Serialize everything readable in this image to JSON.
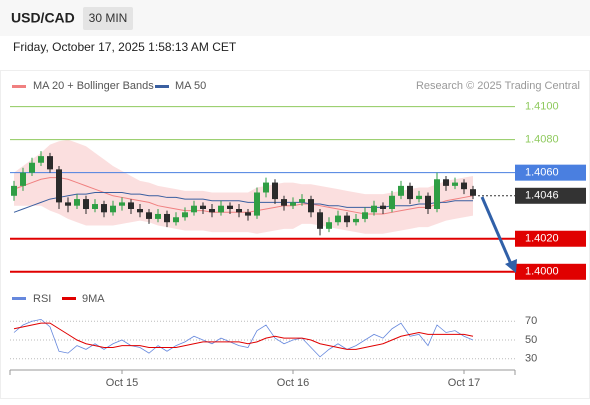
{
  "header": {
    "symbol": "USD/CAD",
    "interval": "30 MIN",
    "datetime": "Friday, October 17, 2025 1:58:13 AM CET"
  },
  "chart_data": {
    "type": "candlestick",
    "legend": [
      {
        "name": "MA 20 + Bollinger Bands",
        "color": "#f08080"
      },
      {
        "name": "MA 50",
        "color": "#3a5fa0"
      }
    ],
    "credit": "Research © 2025 Trading Central",
    "ylim": [
      1.3992,
      1.4107
    ],
    "xticks": [
      {
        "value": 12,
        "label": "Oct 15"
      },
      {
        "value": 31,
        "label": "Oct 16"
      },
      {
        "value": 50,
        "label": "Oct 17"
      }
    ],
    "up_color": "#2f9e44",
    "down_color": "#2b2b2b",
    "open": [
      1.4046,
      1.4052,
      1.406,
      1.4066,
      1.407,
      1.4062,
      1.4042,
      1.404,
      1.4044,
      1.4038,
      1.4041,
      1.4036,
      1.404,
      1.4042,
      1.4038,
      1.4036,
      1.4032,
      1.4035,
      1.403,
      1.4033,
      1.4036,
      1.404,
      1.4038,
      1.4036,
      1.404,
      1.4038,
      1.4036,
      1.4034,
      1.4048,
      1.4054,
      1.4044,
      1.404,
      1.4042,
      1.4044,
      1.4036,
      1.4026,
      1.403,
      1.4034,
      1.403,
      1.4032,
      1.4036,
      1.404,
      1.4038,
      1.4046,
      1.4052,
      1.4044,
      1.4046,
      1.4038,
      1.4056,
      1.4052,
      1.4054,
      1.405
    ],
    "high": [
      1.4055,
      1.4063,
      1.4069,
      1.4073,
      1.4072,
      1.4064,
      1.4045,
      1.4047,
      1.4046,
      1.4044,
      1.4043,
      1.4043,
      1.4045,
      1.4044,
      1.4041,
      1.4038,
      1.4038,
      1.4037,
      1.4036,
      1.4039,
      1.4043,
      1.4042,
      1.4041,
      1.4043,
      1.4042,
      1.4041,
      1.4038,
      1.4051,
      1.4057,
      1.4056,
      1.4046,
      1.4045,
      1.4047,
      1.4046,
      1.4038,
      1.4033,
      1.4037,
      1.4036,
      1.4035,
      1.4039,
      1.4043,
      1.4042,
      1.4049,
      1.4055,
      1.4054,
      1.4049,
      1.4048,
      1.406,
      1.4058,
      1.4057,
      1.4056,
      1.4052
    ],
    "low": [
      1.4043,
      1.4049,
      1.4058,
      1.4064,
      1.406,
      1.4038,
      1.4036,
      1.4038,
      1.4035,
      1.4036,
      1.4033,
      1.4034,
      1.4037,
      1.4035,
      1.4033,
      1.4029,
      1.403,
      1.4027,
      1.4028,
      1.4031,
      1.4034,
      1.4035,
      1.4033,
      1.4034,
      1.4035,
      1.4033,
      1.4031,
      1.4032,
      1.4045,
      1.4041,
      1.4037,
      1.4038,
      1.404,
      1.4033,
      1.4022,
      1.4024,
      1.4028,
      1.4027,
      1.4028,
      1.403,
      1.4034,
      1.4035,
      1.4036,
      1.4044,
      1.4041,
      1.4042,
      1.4035,
      1.4036,
      1.4049,
      1.405,
      1.4047,
      1.4044
    ],
    "close": [
      1.4052,
      1.406,
      1.4066,
      1.407,
      1.4062,
      1.4042,
      1.404,
      1.4044,
      1.4038,
      1.4041,
      1.4036,
      1.404,
      1.4042,
      1.4038,
      1.4036,
      1.4032,
      1.4035,
      1.403,
      1.4033,
      1.4036,
      1.404,
      1.4038,
      1.4036,
      1.404,
      1.4038,
      1.4036,
      1.4034,
      1.4048,
      1.4054,
      1.4044,
      1.404,
      1.4042,
      1.4044,
      1.4036,
      1.4026,
      1.403,
      1.4034,
      1.403,
      1.4032,
      1.4036,
      1.404,
      1.4038,
      1.4046,
      1.4052,
      1.4044,
      1.4046,
      1.4038,
      1.4056,
      1.4052,
      1.4054,
      1.405,
      1.4046
    ],
    "ma20": [
      1.405,
      1.4052,
      1.4054,
      1.4056,
      1.4057,
      1.4057,
      1.4056,
      1.4054,
      1.4052,
      1.405,
      1.4048,
      1.4046,
      1.4045,
      1.4044,
      1.4043,
      1.4042,
      1.404,
      1.4039,
      1.4038,
      1.4037,
      1.4037,
      1.4037,
      1.4036,
      1.4036,
      1.4036,
      1.4036,
      1.4036,
      1.4037,
      1.4038,
      1.4039,
      1.404,
      1.404,
      1.4041,
      1.4041,
      1.404,
      1.4039,
      1.4038,
      1.4037,
      1.4036,
      1.4035,
      1.4035,
      1.4035,
      1.4036,
      1.4037,
      1.4038,
      1.4039,
      1.4039,
      1.4041,
      1.4043,
      1.4044,
      1.4045,
      1.4046
    ],
    "upper": [
      1.406,
      1.4064,
      1.4068,
      1.4072,
      1.4077,
      1.4079,
      1.408,
      1.4078,
      1.4076,
      1.4072,
      1.4068,
      1.4064,
      1.4061,
      1.4058,
      1.4055,
      1.4054,
      1.4052,
      1.4051,
      1.405,
      1.4049,
      1.4049,
      1.4049,
      1.4048,
      1.4048,
      1.4048,
      1.4048,
      1.4048,
      1.4051,
      1.4052,
      1.4053,
      1.4054,
      1.4054,
      1.4053,
      1.4053,
      1.4052,
      1.4051,
      1.405,
      1.4049,
      1.4048,
      1.4047,
      1.4047,
      1.4047,
      1.4048,
      1.4049,
      1.405,
      1.4051,
      1.4051,
      1.4053,
      1.4055,
      1.4056,
      1.4057,
      1.4058
    ],
    "lower": [
      1.404,
      1.404,
      1.404,
      1.404,
      1.4037,
      1.4035,
      1.4032,
      1.403,
      1.4028,
      1.4028,
      1.4028,
      1.4028,
      1.4029,
      1.403,
      1.4031,
      1.403,
      1.4028,
      1.4027,
      1.4026,
      1.4025,
      1.4025,
      1.4025,
      1.4024,
      1.4024,
      1.4024,
      1.4024,
      1.4024,
      1.4023,
      1.4024,
      1.4025,
      1.4026,
      1.4026,
      1.4029,
      1.4029,
      1.4028,
      1.4027,
      1.4026,
      1.4025,
      1.4024,
      1.4023,
      1.4023,
      1.4023,
      1.4024,
      1.4025,
      1.4026,
      1.4027,
      1.4027,
      1.4029,
      1.4031,
      1.4032,
      1.4033,
      1.4034
    ],
    "ma50": [
      1.4036,
      1.4038,
      1.404,
      1.4042,
      1.4044,
      1.4045,
      1.4046,
      1.4047,
      1.4047,
      1.4048,
      1.4048,
      1.4048,
      1.4048,
      1.4047,
      1.4047,
      1.4046,
      1.4046,
      1.4045,
      1.4045,
      1.4044,
      1.4044,
      1.4044,
      1.4043,
      1.4043,
      1.4043,
      1.4043,
      1.4042,
      1.4042,
      1.4042,
      1.4042,
      1.4042,
      1.4042,
      1.4042,
      1.4041,
      1.4041,
      1.404,
      1.404,
      1.4039,
      1.4039,
      1.4039,
      1.4039,
      1.4039,
      1.404,
      1.404,
      1.404,
      1.4041,
      1.4041,
      1.4042,
      1.4042,
      1.4043,
      1.4043,
      1.4043
    ],
    "levels": [
      {
        "value": 1.41,
        "label": "1.4100",
        "color": "#8fca5e",
        "style": "plain"
      },
      {
        "value": 1.408,
        "label": "1.4080",
        "color": "#8fca5e",
        "style": "plain"
      },
      {
        "value": 1.406,
        "label": "1.4060",
        "color": "#4a7fe0",
        "style": "box"
      },
      {
        "value": 1.4046,
        "label": "1.4046",
        "color": "#333333",
        "style": "price"
      },
      {
        "value": 1.402,
        "label": "1.4020",
        "color": "#e00000",
        "style": "box"
      },
      {
        "value": 1.4,
        "label": "1.4000",
        "color": "#e00000",
        "style": "box"
      }
    ],
    "rsi": {
      "legend": [
        {
          "name": "RSI",
          "color": "#6688dd"
        },
        {
          "name": "9MA",
          "color": "#e00000"
        }
      ],
      "ylim": [
        18,
        82
      ],
      "yticks": [
        70,
        50,
        30
      ],
      "rsi": [
        58,
        66,
        70,
        72,
        64,
        38,
        36,
        44,
        40,
        46,
        40,
        46,
        50,
        44,
        42,
        36,
        44,
        38,
        44,
        48,
        54,
        50,
        46,
        52,
        48,
        44,
        42,
        60,
        66,
        52,
        46,
        50,
        52,
        42,
        32,
        40,
        46,
        40,
        44,
        50,
        56,
        52,
        62,
        68,
        54,
        56,
        44,
        66,
        58,
        60,
        54,
        50
      ],
      "ma9": [
        62,
        64,
        66,
        68,
        68,
        62,
        56,
        50,
        46,
        44,
        42,
        42,
        44,
        44,
        44,
        42,
        42,
        42,
        42,
        44,
        46,
        48,
        48,
        48,
        48,
        48,
        46,
        48,
        52,
        54,
        52,
        52,
        52,
        50,
        46,
        44,
        42,
        40,
        40,
        42,
        44,
        46,
        50,
        54,
        56,
        58,
        56,
        56,
        56,
        56,
        56,
        54
      ]
    }
  }
}
